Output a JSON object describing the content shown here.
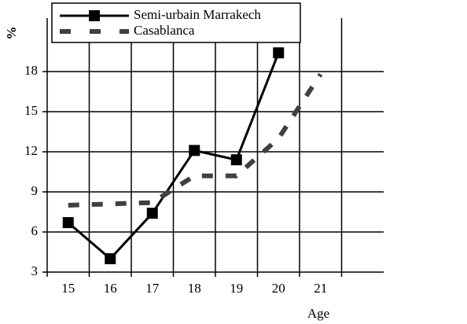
{
  "chart_data": {
    "type": "line",
    "y_label": "%",
    "x_label": "Age",
    "categories": [
      "15",
      "16",
      "17",
      "18",
      "19",
      "20",
      "21",
      null
    ],
    "series": [
      {
        "name": "Semi-urbain Marrakech",
        "color": "#000000",
        "style": "solid",
        "marker": "square",
        "values": [
          6.7,
          4.0,
          7.4,
          12.1,
          11.4,
          19.4,
          null,
          null
        ]
      },
      {
        "name": "Casablanca",
        "color": "#404040",
        "style": "dashed",
        "marker": "none",
        "values": [
          8.0,
          8.1,
          8.2,
          10.2,
          10.2,
          13.0,
          17.8,
          null
        ]
      }
    ],
    "ylim": [
      3,
      22
    ],
    "yticks": [
      3,
      6,
      9,
      12,
      15,
      18
    ],
    "grid": true
  }
}
